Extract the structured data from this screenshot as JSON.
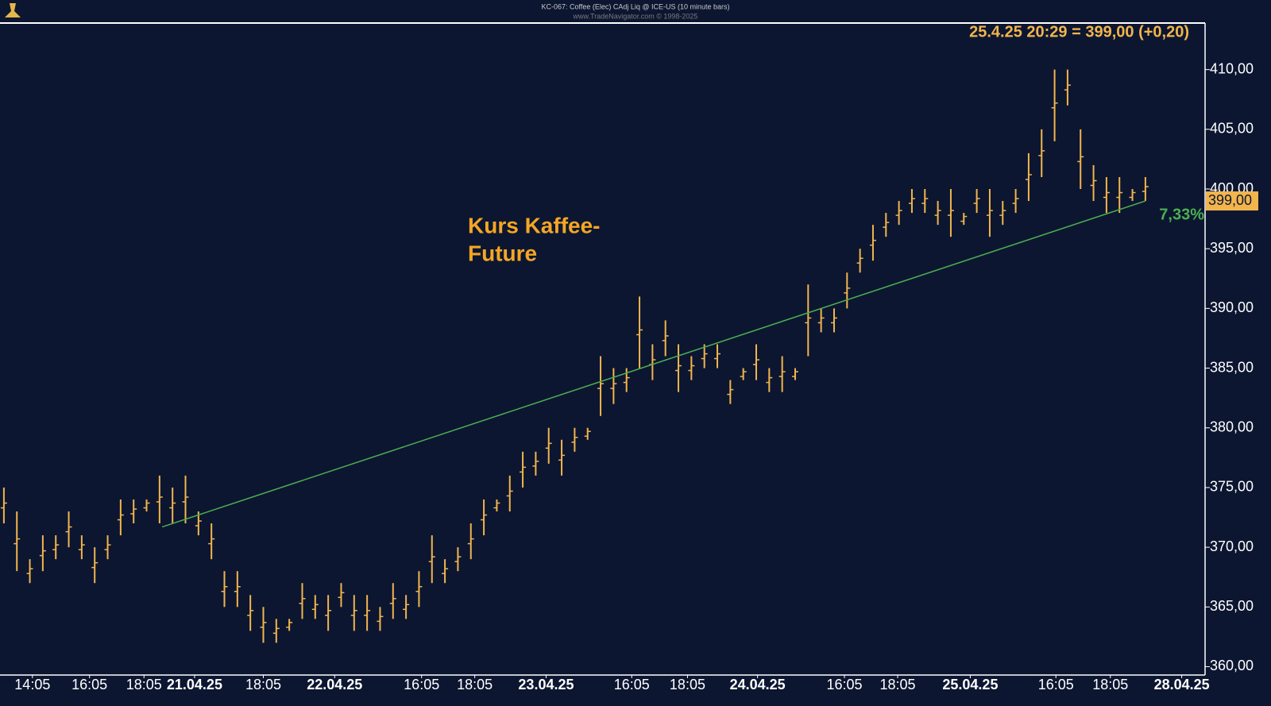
{
  "chart_data": {
    "type": "ohlc",
    "title": "KC-067: Coffee (Elec) CAdj Liq @ ICE-US (10 minute bars)",
    "subtitle": "www.TradeNavigator.com © 1998-2025",
    "header": "25.4.25 20:29 = 399,00 (+0,20)",
    "annotation": [
      "Kurs Kaffee-",
      "Future"
    ],
    "color": "#f2b54c",
    "high": [
      375,
      373,
      369,
      371,
      371,
      373,
      371,
      370,
      371,
      374,
      374,
      374,
      376,
      375,
      376,
      373,
      372,
      368,
      368,
      366,
      365,
      364,
      364,
      367,
      366,
      366,
      367,
      366,
      366,
      365,
      367,
      366,
      368,
      371,
      369,
      370,
      372,
      374,
      374,
      376,
      378,
      378,
      380,
      379,
      380,
      380,
      386,
      385,
      385,
      391,
      387,
      389,
      387,
      386,
      387,
      387,
      384,
      385,
      387,
      385,
      386,
      385,
      392,
      390,
      390,
      393,
      395,
      397,
      398,
      399,
      400,
      400,
      399,
      400,
      398,
      400,
      400,
      399,
      400,
      403,
      405,
      410,
      410,
      405,
      402,
      401,
      401,
      400,
      401
    ],
    "low": [
      372,
      368,
      367,
      368,
      369,
      370,
      369,
      367,
      369,
      371,
      372,
      373,
      372,
      372,
      372,
      371,
      369,
      365,
      365,
      363,
      362,
      362,
      363,
      364,
      364,
      363,
      365,
      363,
      363,
      363,
      364,
      364,
      365,
      367,
      367,
      368,
      369,
      371,
      373,
      373,
      375,
      376,
      377,
      376,
      378,
      379,
      381,
      382,
      383,
      385,
      384,
      386,
      383,
      384,
      385,
      385,
      382,
      384,
      384,
      383,
      383,
      384,
      386,
      388,
      388,
      390,
      393,
      394,
      396,
      397,
      398,
      398,
      397,
      396,
      397,
      398,
      396,
      397,
      398,
      399,
      401,
      404,
      407,
      400,
      399,
      398,
      398,
      399,
      399
    ],
    "trendline": {
      "color": "#4caf50",
      "x": [
        12.2,
        88
      ],
      "y": [
        371.7,
        399
      ],
      "label": "7,33%"
    },
    "last_price": {
      "value": 399,
      "label": "399,00"
    },
    "xlim": [
      -0.3,
      92.6
    ],
    "xticks": [
      {
        "value": 2.2,
        "label": "14:05"
      },
      {
        "value": 6.6,
        "label": "16:05"
      },
      {
        "value": 10.8,
        "label": "18:05"
      },
      {
        "value": 14.7,
        "label": "21.04.25"
      },
      {
        "value": 20,
        "label": "18:05"
      },
      {
        "value": 25.5,
        "label": "22.04.25"
      },
      {
        "value": 32.2,
        "label": "16:05"
      },
      {
        "value": 36.3,
        "label": "18:05"
      },
      {
        "value": 41.8,
        "label": "23.04.25"
      },
      {
        "value": 48.4,
        "label": "16:05"
      },
      {
        "value": 52.7,
        "label": "18:05"
      },
      {
        "value": 58.1,
        "label": "24.04.25"
      },
      {
        "value": 64.8,
        "label": "16:05"
      },
      {
        "value": 68.9,
        "label": "18:05"
      },
      {
        "value": 74.5,
        "label": "25.04.25"
      },
      {
        "value": 81.1,
        "label": "16:05"
      },
      {
        "value": 85.3,
        "label": "18:05"
      },
      {
        "value": 90.8,
        "label": "28.04.25"
      }
    ],
    "ylim": [
      359.3,
      413.9
    ],
    "yticks": [
      {
        "value": 360,
        "label": "360,00"
      },
      {
        "value": 365,
        "label": "365,00"
      },
      {
        "value": 370,
        "label": "370,00"
      },
      {
        "value": 375,
        "label": "375,00"
      },
      {
        "value": 380,
        "label": "380,00"
      },
      {
        "value": 385,
        "label": "385,00"
      },
      {
        "value": 390,
        "label": "390,00"
      },
      {
        "value": 395,
        "label": "395,00"
      },
      {
        "value": 400,
        "label": "400,00"
      },
      {
        "value": 405,
        "label": "405,00"
      },
      {
        "value": 410,
        "label": "410,00"
      }
    ]
  }
}
